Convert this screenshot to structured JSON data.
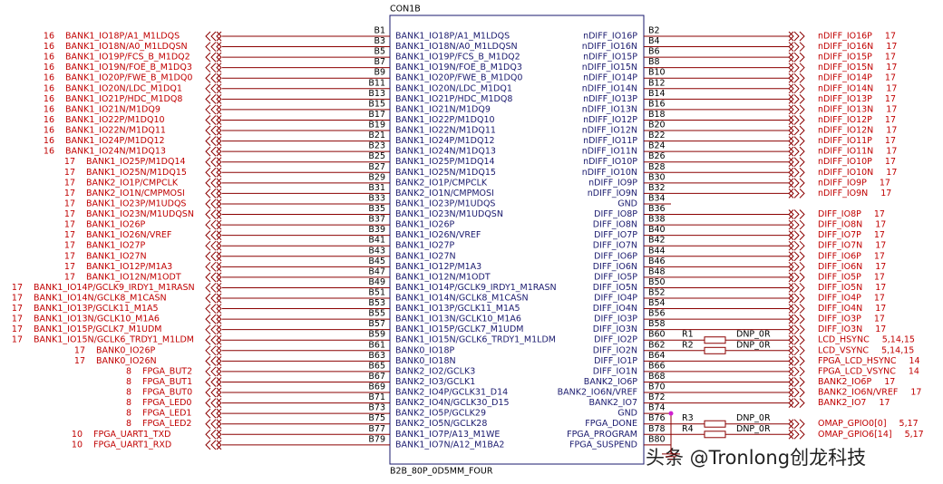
{
  "title": "CON1B",
  "footer": "B2B_80P_0D5MM_FOUR",
  "watermark": "头条 @Tronlong创龙科技",
  "left_pins": [
    {
      "pin": "B1",
      "signal": "BANK1_IO18P/A1_M1LDQS",
      "net": "BANK1_IO18P/A1_M1LDQS",
      "ref": "16"
    },
    {
      "pin": "B3",
      "signal": "BANK1_IO18N/A0_M1LDQSN",
      "net": "BANK1_IO18N/A0_M1LDQSN",
      "ref": "16"
    },
    {
      "pin": "B5",
      "signal": "BANK1_IO19P/FCS_B_M1DQ2",
      "net": "BANK1_IO19P/FCS_B_M1DQ2",
      "ref": "16"
    },
    {
      "pin": "B7",
      "signal": "BANK1_IO19N/FOE_B_M1DQ3",
      "net": "BANK1_IO19N/FOE_B_M1DQ3",
      "ref": "16"
    },
    {
      "pin": "B9",
      "signal": "BANK1_IO20P/FWE_B_M1DQ0",
      "net": "BANK1_IO20P/FWE_B_M1DQ0",
      "ref": "16"
    },
    {
      "pin": "B11",
      "signal": "BANK1_IO20N/LDC_M1DQ1",
      "net": "BANK1_IO20N/LDC_M1DQ1",
      "ref": "16"
    },
    {
      "pin": "B13",
      "signal": "BANK1_IO21P/HDC_M1DQ8",
      "net": "BANK1_IO21P/HDC_M1DQ8",
      "ref": "16"
    },
    {
      "pin": "B15",
      "signal": "BANK1_IO21N/M1DQ9",
      "net": "BANK1_IO21N/M1DQ9",
      "ref": "16"
    },
    {
      "pin": "B17",
      "signal": "BANK1_IO22P/M1DQ10",
      "net": "BANK1_IO22P/M1DQ10",
      "ref": "16"
    },
    {
      "pin": "B19",
      "signal": "BANK1_IO22N/M1DQ11",
      "net": "BANK1_IO22N/M1DQ11",
      "ref": "16"
    },
    {
      "pin": "B21",
      "signal": "BANK1_IO24P/M1DQ12",
      "net": "BANK1_IO24P/M1DQ12",
      "ref": "16"
    },
    {
      "pin": "B23",
      "signal": "BANK1_IO24N/M1DQ13",
      "net": "BANK1_IO24N/M1DQ13",
      "ref": "16"
    },
    {
      "pin": "B25",
      "signal": "BANK1_IO25P/M1DQ14",
      "net": "BANK1_IO25P/M1DQ14",
      "ref": "17"
    },
    {
      "pin": "B27",
      "signal": "BANK1_IO25N/M1DQ15",
      "net": "BANK1_IO25N/M1DQ15",
      "ref": "17"
    },
    {
      "pin": "B29",
      "signal": "BANK2_IO1P/CMPCLK",
      "net": "BANK2_IO1P/CMPCLK",
      "ref": "17"
    },
    {
      "pin": "B31",
      "signal": "BANK2_IO1N/CMPMOSI",
      "net": "BANK2_IO1N/CMPMOSI",
      "ref": "17"
    },
    {
      "pin": "B33",
      "signal": "BANK1_IO23P/M1UDQS",
      "net": "BANK1_IO23P/M1UDQS",
      "ref": "17"
    },
    {
      "pin": "B35",
      "signal": "BANK1_IO23N/M1UDQSN",
      "net": "BANK1_IO23N/M1UDQSN",
      "ref": "17"
    },
    {
      "pin": "B37",
      "signal": "BANK1_IO26P",
      "net": "BANK1_IO26P",
      "ref": "17"
    },
    {
      "pin": "B39",
      "signal": "BANK1_IO26N/VREF",
      "net": "BANK1_IO26N/VREF",
      "ref": "17"
    },
    {
      "pin": "B41",
      "signal": "BANK1_IO27P",
      "net": "BANK1_IO27P",
      "ref": "17"
    },
    {
      "pin": "B43",
      "signal": "BANK1_IO27N",
      "net": "BANK1_IO27N",
      "ref": "17"
    },
    {
      "pin": "B45",
      "signal": "BANK1_IO12P/M1A3",
      "net": "BANK1_IO12P/M1A3",
      "ref": "17"
    },
    {
      "pin": "B47",
      "signal": "BANK1_IO12N/M1ODT",
      "net": "BANK1_IO12N/M1ODT",
      "ref": "17"
    },
    {
      "pin": "B49",
      "signal": "BANK1_IO14P/GCLK9_IRDY1_M1RASN",
      "net": "BANK1_IO14P/GCLK9_IRDY1_M1RASN",
      "ref": "17"
    },
    {
      "pin": "B51",
      "signal": "BANK1_IO14N/GCLK8_M1CASN",
      "net": "BANK1_IO14N/GCLK8_M1CASN",
      "ref": "17"
    },
    {
      "pin": "B53",
      "signal": "BANK1_IO13P/GCLK11_M1A5",
      "net": "BANK1_IO13P/GCLK11_M1A5",
      "ref": "17"
    },
    {
      "pin": "B55",
      "signal": "BANK1_IO13N/GCLK10_M1A6",
      "net": "BANK1_IO13N/GCLK10_M1A6",
      "ref": "17"
    },
    {
      "pin": "B57",
      "signal": "BANK1_IO15P/GCLK7_M1UDM",
      "net": "BANK1_IO15P/GCLK7_M1UDM",
      "ref": "17"
    },
    {
      "pin": "B59",
      "signal": "BANK1_IO15N/GCLK6_TRDY1_M1LDM",
      "net": "BANK1_IO15N/GCLK6_TRDY1_M1LDM",
      "ref": "17"
    },
    {
      "pin": "B61",
      "signal": "BANK0_IO18P",
      "net": "BANK0_IO26P",
      "ref": "17"
    },
    {
      "pin": "B63",
      "signal": "BANK0_IO18N",
      "net": "BANK0_IO26N",
      "ref": "17"
    },
    {
      "pin": "B65",
      "signal": "BANK2_IO2/GCLK3",
      "net": "FPGA_BUT2",
      "ref": "8"
    },
    {
      "pin": "B67",
      "signal": "BANK2_IO3/GCLK1",
      "net": "FPGA_BUT1",
      "ref": "8"
    },
    {
      "pin": "B69",
      "signal": "BANK2_IO4P/GCLK31_D14",
      "net": "FPGA_BUT0",
      "ref": "8"
    },
    {
      "pin": "B71",
      "signal": "BANK2_IO4N/GCLK30_D15",
      "net": "FPGA_LED0",
      "ref": "8"
    },
    {
      "pin": "B73",
      "signal": "BANK2_IO5P/GCLK29",
      "net": "FPGA_LED1",
      "ref": "8"
    },
    {
      "pin": "B75",
      "signal": "BANK2_IO5N/GCLK28",
      "net": "FPGA_LED2",
      "ref": "8"
    },
    {
      "pin": "B77",
      "signal": "BANK1_IO7P/A13_M1WE",
      "net": "FPGA_UART1_TXD",
      "ref": "10"
    },
    {
      "pin": "B79",
      "signal": "BANK1_IO7N/A12_M1BA2",
      "net": "FPGA_UART1_RXD",
      "ref": "10"
    }
  ],
  "right_pins": [
    {
      "pin": "B2",
      "signal": "nDIFF_IO16P",
      "net": "nDIFF_IO16P",
      "ref": "17"
    },
    {
      "pin": "B4",
      "signal": "nDIFF_IO16N",
      "net": "nDIFF_IO16N",
      "ref": "17"
    },
    {
      "pin": "B6",
      "signal": "nDIFF_IO15P",
      "net": "nDIFF_IO15P",
      "ref": "17"
    },
    {
      "pin": "B8",
      "signal": "nDIFF_IO15N",
      "net": "nDIFF_IO15N",
      "ref": "17"
    },
    {
      "pin": "B10",
      "signal": "nDIFF_IO14P",
      "net": "nDIFF_IO14P",
      "ref": "17"
    },
    {
      "pin": "B12",
      "signal": "nDIFF_IO14N",
      "net": "nDIFF_IO14N",
      "ref": "17"
    },
    {
      "pin": "B14",
      "signal": "nDIFF_IO13P",
      "net": "nDIFF_IO13P",
      "ref": "17"
    },
    {
      "pin": "B16",
      "signal": "nDIFF_IO13N",
      "net": "nDIFF_IO13N",
      "ref": "17"
    },
    {
      "pin": "B18",
      "signal": "nDIFF_IO12P",
      "net": "nDIFF_IO12P",
      "ref": "17"
    },
    {
      "pin": "B20",
      "signal": "nDIFF_IO12N",
      "net": "nDIFF_IO12N",
      "ref": "17"
    },
    {
      "pin": "B22",
      "signal": "nDIFF_IO11P",
      "net": "nDIFF_IO11P",
      "ref": "17"
    },
    {
      "pin": "B24",
      "signal": "nDIFF_IO11N",
      "net": "nDIFF_IO11N",
      "ref": "17"
    },
    {
      "pin": "B26",
      "signal": "nDIFF_IO10P",
      "net": "nDIFF_IO10P",
      "ref": "17"
    },
    {
      "pin": "B28",
      "signal": "nDIFF_IO10N",
      "net": "nDIFF_IO10N",
      "ref": "17"
    },
    {
      "pin": "B30",
      "signal": "nDIFF_IO9P",
      "net": "nDIFF_IO9P",
      "ref": "17"
    },
    {
      "pin": "B32",
      "signal": "nDIFF_IO9N",
      "net": "nDIFF_IO9N",
      "ref": "17"
    },
    {
      "pin": "B34",
      "signal": "GND"
    },
    {
      "pin": "B36",
      "signal": "DIFF_IO8P",
      "net": "DIFF_IO8P",
      "ref": "17"
    },
    {
      "pin": "B38",
      "signal": "DIFF_IO8N",
      "net": "DIFF_IO8N",
      "ref": "17"
    },
    {
      "pin": "B40",
      "signal": "DIFF_IO7P",
      "net": "DIFF_IO7P",
      "ref": "17"
    },
    {
      "pin": "B42",
      "signal": "DIFF_IO7N",
      "net": "DIFF_IO7N",
      "ref": "17"
    },
    {
      "pin": "B44",
      "signal": "DIFF_IO6P",
      "net": "DIFF_IO6P",
      "ref": "17"
    },
    {
      "pin": "B46",
      "signal": "DIFF_IO6N",
      "net": "DIFF_IO6N",
      "ref": "17"
    },
    {
      "pin": "B48",
      "signal": "DIFF_IO5P",
      "net": "DIFF_IO5P",
      "ref": "17"
    },
    {
      "pin": "B50",
      "signal": "DIFF_IO5N",
      "net": "DIFF_IO5N",
      "ref": "17"
    },
    {
      "pin": "B52",
      "signal": "DIFF_IO4P",
      "net": "DIFF_IO4P",
      "ref": "17"
    },
    {
      "pin": "B54",
      "signal": "DIFF_IO4N",
      "net": "DIFF_IO4N",
      "ref": "17"
    },
    {
      "pin": "B56",
      "signal": "DIFF_IO3P",
      "net": "DIFF_IO3P",
      "ref": "17"
    },
    {
      "pin": "B58",
      "signal": "DIFF_IO3N",
      "net": "DIFF_IO3N",
      "ref": "17"
    },
    {
      "pin": "B60",
      "signal": "DIFF_IO2P",
      "resistor": "R1",
      "resistor_value": "DNP_0R",
      "net": "LCD_HSYNC",
      "ref": "5,14,15"
    },
    {
      "pin": "B62",
      "signal": "DIFF_IO2N",
      "resistor": "R2",
      "resistor_value": "DNP_0R",
      "net": "LCD_VSYNC",
      "ref": "5,14,15"
    },
    {
      "pin": "B64",
      "signal": "DIFF_IO1P",
      "net": "FPGA_LCD_HSYNC",
      "ref": "14"
    },
    {
      "pin": "B66",
      "signal": "DIFF_IO1N",
      "net": "FPGA_LCD_VSYNC",
      "ref": "14"
    },
    {
      "pin": "B68",
      "signal": "BANK2_IO6P",
      "net": "BANK2_IO6P",
      "ref": "17"
    },
    {
      "pin": "B70",
      "signal": "BANK2_IO6N/VREF",
      "net": "BANK2_IO6N/VREF",
      "ref": "17"
    },
    {
      "pin": "B72",
      "signal": "BANK2_IO7",
      "net": "BANK2_IO7",
      "ref": "17"
    },
    {
      "pin": "B74",
      "signal": "GND"
    },
    {
      "pin": "B76",
      "signal": "FPGA_DONE",
      "resistor": "R3",
      "resistor_value": "DNP_0R",
      "net": "OMAP_GPIO0[0]",
      "ref": "5,17"
    },
    {
      "pin": "B78",
      "signal": "FPGA_PROGRAM",
      "resistor": "R4",
      "resistor_value": "DNP_0R",
      "net": "OMAP_GPIO6[14]",
      "ref": "5,17"
    },
    {
      "pin": "B80",
      "signal": "FPGA_SUSPEND"
    }
  ]
}
